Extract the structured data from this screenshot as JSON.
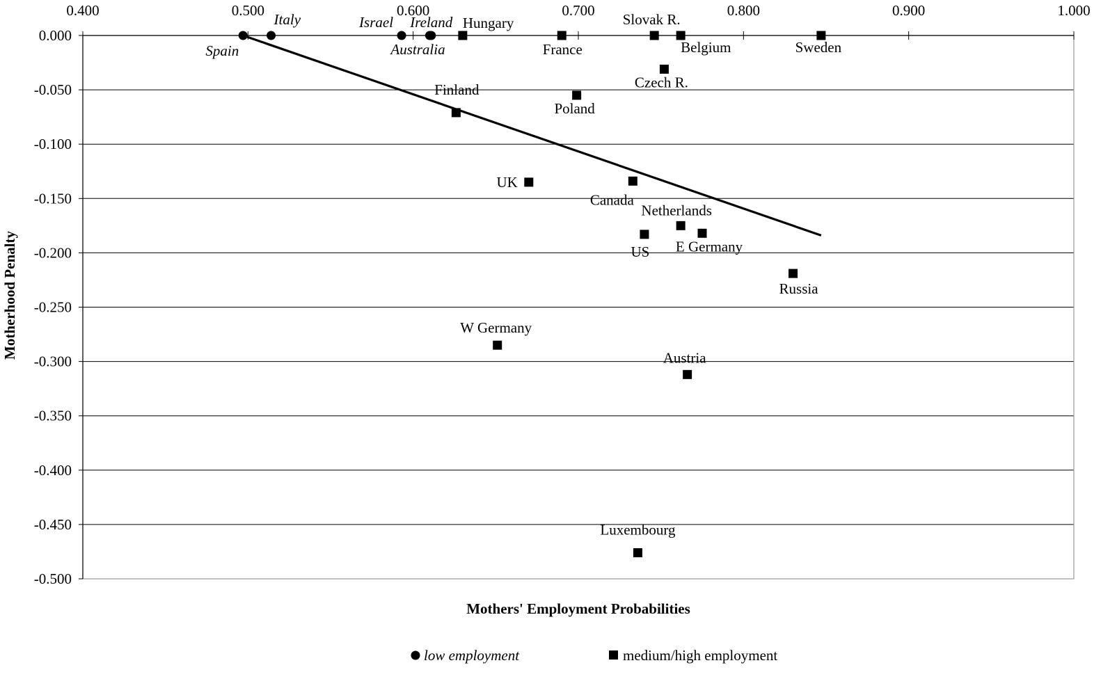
{
  "chart_data": {
    "type": "scatter",
    "xlabel": "Mothers' Employment Probabilities",
    "ylabel": "Motherhood Penalty",
    "xlim": [
      0.4,
      1.0
    ],
    "ylim": [
      -0.5,
      0.0
    ],
    "x_ticks": [
      "0.400",
      "0.500",
      "0.600",
      "0.700",
      "0.800",
      "0.900",
      "1.000"
    ],
    "y_ticks": [
      "0.000",
      "-0.050",
      "-0.100",
      "-0.150",
      "-0.200",
      "-0.250",
      "-0.300",
      "-0.350",
      "-0.400",
      "-0.450",
      "-0.500"
    ],
    "x_axis_position": "top",
    "grid": "horizontal",
    "legend_placement": "bottom",
    "series": [
      {
        "name": "low employment",
        "marker": "circle",
        "points": [
          {
            "label": "Spain",
            "x": 0.497,
            "y": 0.0
          },
          {
            "label": "Italy",
            "x": 0.514,
            "y": 0.0
          },
          {
            "label": "Israel",
            "x": 0.593,
            "y": 0.0
          },
          {
            "label": "Australia",
            "x": 0.61,
            "y": 0.0
          },
          {
            "label": "Ireland",
            "x": 0.611,
            "y": 0.0
          }
        ]
      },
      {
        "name": "medium/high employment",
        "marker": "square",
        "points": [
          {
            "label": "Hungary",
            "x": 0.63,
            "y": 0.0
          },
          {
            "label": "France",
            "x": 0.69,
            "y": 0.0
          },
          {
            "label": "Slovak R.",
            "x": 0.746,
            "y": 0.0
          },
          {
            "label": "Belgium",
            "x": 0.762,
            "y": 0.0
          },
          {
            "label": "Sweden",
            "x": 0.847,
            "y": 0.0
          },
          {
            "label": "Czech R.",
            "x": 0.752,
            "y": -0.031
          },
          {
            "label": "Poland",
            "x": 0.699,
            "y": -0.055
          },
          {
            "label": "Finland",
            "x": 0.626,
            "y": -0.071
          },
          {
            "label": "UK",
            "x": 0.67,
            "y": -0.135
          },
          {
            "label": "Canada",
            "x": 0.733,
            "y": -0.134
          },
          {
            "label": "Netherlands",
            "x": 0.762,
            "y": -0.175
          },
          {
            "label": "US",
            "x": 0.74,
            "y": -0.183
          },
          {
            "label": "E Germany",
            "x": 0.775,
            "y": -0.182
          },
          {
            "label": "Russia",
            "x": 0.83,
            "y": -0.219
          },
          {
            "label": "W Germany",
            "x": 0.651,
            "y": -0.285
          },
          {
            "label": "Austria",
            "x": 0.766,
            "y": -0.312
          },
          {
            "label": "Luxembourg",
            "x": 0.736,
            "y": -0.476
          }
        ]
      }
    ],
    "trend_line": {
      "x": [
        0.497,
        0.847
      ],
      "y": [
        0.0,
        -0.184
      ]
    },
    "colors": {
      "marker": "#000000",
      "grid": "#000000",
      "trend": "#000000"
    }
  }
}
